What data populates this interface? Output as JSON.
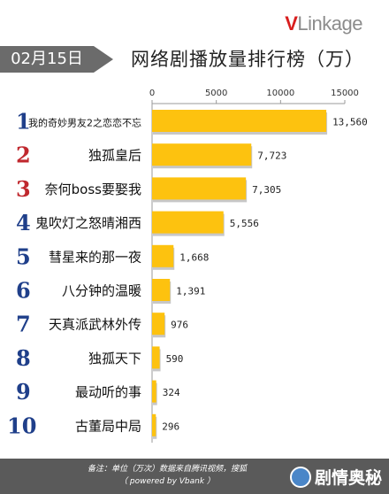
{
  "header": {
    "logo_v": "V",
    "logo_rest": "Linkage",
    "date": "02月15日",
    "title": "网络剧播放量排行榜（万）"
  },
  "footer": {
    "note_line1": "备注：单位（万次）数据来自腾讯视频，搜狐",
    "note_line2": "（ powered by Vbank ）",
    "watermark": "剧情奥秘"
  },
  "colors": {
    "bar": "#fdc20f",
    "rank": "#c0282e",
    "rank_top": "#1f3f8a"
  },
  "chart_data": {
    "type": "bar",
    "orientation": "horizontal",
    "title": "网络剧播放量排行榜（万）",
    "xlim": [
      0,
      15000
    ],
    "ticks": [
      0,
      5000,
      10000,
      15000
    ],
    "tick_labels": [
      "0",
      "5000",
      "10000",
      "15000"
    ],
    "grid": false,
    "legend": "none",
    "ranks": [
      "1",
      "2",
      "3",
      "4",
      "5",
      "6",
      "7",
      "8",
      "9",
      "10"
    ],
    "categories": [
      "我的奇妙男友2之恋恋不忘",
      "独孤皇后",
      "奈何boss要娶我",
      "鬼吹灯之怒晴湘西",
      "彗星来的那一夜",
      "八分钟的温暖",
      "天真派武林外传",
      "独孤天下",
      "最动听的事",
      "古董局中局"
    ],
    "values": [
      13560,
      7723,
      7305,
      5556,
      1668,
      1391,
      976,
      590,
      324,
      296
    ],
    "value_labels": [
      "13,560",
      "7,723",
      "7,305",
      "5,556",
      "1,668",
      "1,391",
      "976",
      "590",
      "324",
      "296"
    ]
  }
}
